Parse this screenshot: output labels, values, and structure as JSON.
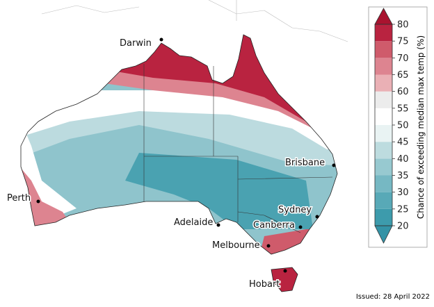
{
  "legend": {
    "title": "Chance of exceeding median max temp (%)",
    "ticks": [
      20,
      25,
      30,
      35,
      40,
      45,
      50,
      55,
      60,
      65,
      70,
      75,
      80
    ],
    "colors": [
      "#3d9bac",
      "#58a9b7",
      "#76b8c3",
      "#97c9d0",
      "#bddcdf",
      "#e9f3f3",
      "#ffffff",
      "#ececec",
      "#eab0b5",
      "#dd8490",
      "#cf5b6b",
      "#b92340"
    ],
    "below_color": "#3493a6",
    "above_color": "#a9132f"
  },
  "cities": [
    {
      "name": "Darwin"
    },
    {
      "name": "Brisbane"
    },
    {
      "name": "Perth"
    },
    {
      "name": "Sydney"
    },
    {
      "name": "Adelaide"
    },
    {
      "name": "Canberra"
    },
    {
      "name": "Melbourne"
    },
    {
      "name": "Hobart"
    }
  ],
  "issued": "Issued: 28 April 2022"
}
